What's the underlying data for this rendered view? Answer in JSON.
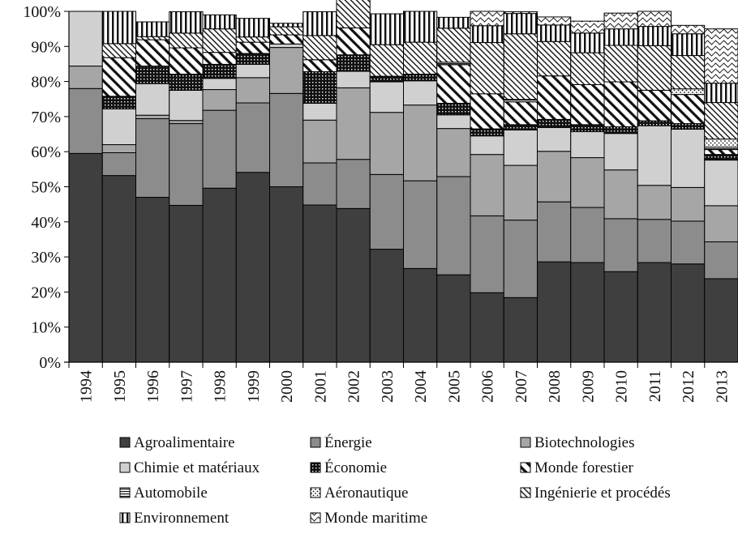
{
  "chart_data": {
    "type": "bar",
    "stacked": true,
    "normalized": true,
    "title": "",
    "xlabel": "",
    "ylabel": "",
    "ylim": [
      0,
      100
    ],
    "y_ticks": [
      "0%",
      "10%",
      "20%",
      "30%",
      "40%",
      "50%",
      "60%",
      "70%",
      "80%",
      "90%",
      "100%"
    ],
    "grid": false,
    "legend_position": "bottom",
    "categories": [
      "1994",
      "1995",
      "1996",
      "1997",
      "1998",
      "1999",
      "2000",
      "2001",
      "2002",
      "2003",
      "2004",
      "2005",
      "2006",
      "2007",
      "2008",
      "2009",
      "2010",
      "2011",
      "2012",
      "2013"
    ],
    "series": [
      {
        "name": "Agroalimentaire",
        "fill": "#3f3f3f",
        "pattern": "solid",
        "values": [
          59.5,
          53.2,
          47,
          44.7,
          49.6,
          54.1,
          50,
          44.8,
          43.8,
          32.2,
          26.7,
          24.9,
          19.8,
          18.4,
          28.6,
          28.4,
          25.8,
          28.4,
          28,
          23.8
        ]
      },
      {
        "name": "Énergie",
        "fill": "#8c8c8c",
        "pattern": "solid",
        "values": [
          18.5,
          6.5,
          22.4,
          23.3,
          22.2,
          19.8,
          26.6,
          12,
          14,
          21.3,
          25,
          28,
          21.9,
          22.1,
          17.1,
          15.7,
          15.1,
          12.3,
          12.2,
          10.5
        ]
      },
      {
        "name": "Biotechnologies",
        "fill": "#a6a6a6",
        "pattern": "solid",
        "values": [
          6.4,
          2.3,
          1,
          0.9,
          5.9,
          7.2,
          13.1,
          12.2,
          20.4,
          17.7,
          21.6,
          13.7,
          17.5,
          15.6,
          14.4,
          14.2,
          13.9,
          9.7,
          9.6,
          10.3
        ]
      },
      {
        "name": "Chimie et matériaux",
        "fill": "#d0d0d0",
        "pattern": "solid",
        "values": [
          15.6,
          10.2,
          9,
          8.6,
          3.2,
          3.8,
          1,
          4.8,
          4.7,
          8.7,
          6.9,
          3.9,
          5.3,
          10.1,
          6.8,
          7.4,
          10.4,
          17,
          16.6,
          13
        ]
      },
      {
        "name": "Économie",
        "fill": "#111111",
        "pattern": "dots",
        "values": [
          0,
          3.6,
          5,
          4.6,
          4,
          3.1,
          0,
          9,
          4.7,
          1.6,
          1.9,
          3.3,
          2,
          1.5,
          2.3,
          2,
          1.9,
          1.4,
          1.6,
          1.6
        ]
      },
      {
        "name": "Monde forestier",
        "fill": "#ffffff",
        "pattern": "diag-bold",
        "values": [
          0,
          11,
          7.5,
          7.5,
          3.4,
          3.2,
          2.6,
          3.4,
          7.7,
          0,
          0,
          11,
          10,
          6.5,
          12.4,
          11.4,
          12.8,
          8.7,
          8.3,
          1.4
        ]
      },
      {
        "name": "Automobile",
        "fill": "#ffffff",
        "pattern": "hlines",
        "values": [
          0,
          0,
          0,
          0,
          0,
          0,
          0,
          0,
          0,
          0,
          0,
          0.7,
          0,
          0.7,
          0,
          0,
          0,
          0,
          0,
          0.7
        ]
      },
      {
        "name": "Aéronautique",
        "fill": "#ffffff",
        "pattern": "dots-light",
        "values": [
          0,
          0,
          0,
          0,
          0,
          0,
          0,
          0,
          0,
          0,
          0,
          0,
          0,
          0,
          0,
          0,
          0,
          0,
          1.6,
          2.3
        ]
      },
      {
        "name": "Ingénierie et procédés",
        "fill": "#ffffff",
        "pattern": "diag-fine",
        "values": [
          0,
          4,
          0.9,
          4.2,
          6.7,
          1.5,
          2.3,
          6.9,
          8.2,
          9,
          9.1,
          9.7,
          14.6,
          18.7,
          9.8,
          9.1,
          10.4,
          12.7,
          9.5,
          10.4
        ]
      },
      {
        "name": "Environnement",
        "fill": "#ffffff",
        "pattern": "vlines",
        "values": [
          0,
          9.2,
          4.2,
          6.1,
          4,
          5.3,
          1,
          6.8,
          4.6,
          8.8,
          8.8,
          3.1,
          4.8,
          5.8,
          4.7,
          5.6,
          4.7,
          5.5,
          6.2,
          5.5
        ]
      },
      {
        "name": "Monde maritime",
        "fill": "#ffffff",
        "pattern": "waves",
        "values": [
          0,
          0,
          0,
          0,
          0,
          0,
          0,
          0,
          0,
          0,
          0,
          0,
          4.1,
          0.5,
          2.3,
          3.4,
          4.5,
          4.3,
          2.4,
          15.5
        ]
      }
    ]
  }
}
